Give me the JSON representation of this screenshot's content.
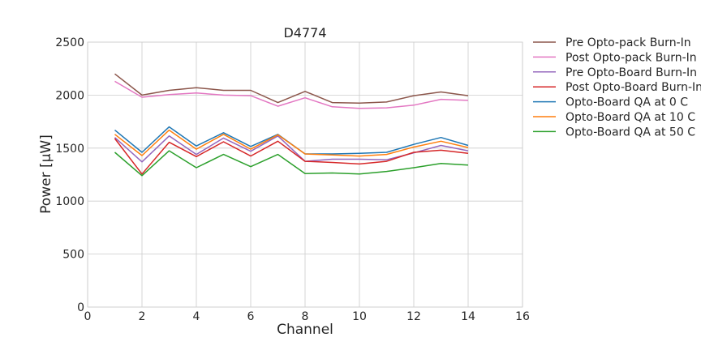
{
  "chart_data": {
    "type": "line",
    "title": "D4774",
    "xlabel": "Channel",
    "ylabel": "Power [μW]",
    "xlim": [
      0,
      16
    ],
    "ylim": [
      0,
      2500
    ],
    "xticks": [
      0,
      2,
      4,
      6,
      8,
      10,
      12,
      14,
      16
    ],
    "yticks": [
      0,
      500,
      1000,
      1500,
      2000,
      2500
    ],
    "grid": true,
    "legend": "right-outside-top",
    "x": [
      1,
      2,
      3,
      4,
      5,
      6,
      7,
      8,
      9,
      10,
      11,
      12,
      13,
      14
    ],
    "series": [
      {
        "name": "Pre Opto-pack Burn-In",
        "color": "#8c564b",
        "values": [
          2200,
          2000,
          2045,
          2070,
          2045,
          2045,
          1930,
          2035,
          1930,
          1925,
          1935,
          1995,
          2030,
          1995
        ]
      },
      {
        "name": "Post Opto-pack Burn-In",
        "color": "#e377c2",
        "values": [
          2130,
          1980,
          2005,
          2020,
          2000,
          1995,
          1895,
          1975,
          1890,
          1875,
          1880,
          1905,
          1960,
          1950
        ]
      },
      {
        "name": "Pre Opto-Board Burn-In",
        "color": "#9467bd",
        "values": [
          1600,
          1370,
          1615,
          1440,
          1595,
          1470,
          1615,
          1375,
          1395,
          1395,
          1390,
          1455,
          1525,
          1475
        ]
      },
      {
        "name": "Post Opto-Board Burn-In",
        "color": "#d62728",
        "values": [
          1590,
          1255,
          1555,
          1420,
          1560,
          1425,
          1565,
          1375,
          1365,
          1350,
          1375,
          1460,
          1480,
          1450
        ]
      },
      {
        "name": "Opto-Board QA at 0 C",
        "color": "#1f77b4",
        "values": [
          1670,
          1460,
          1700,
          1520,
          1645,
          1515,
          1630,
          1445,
          1445,
          1450,
          1460,
          1535,
          1600,
          1525
        ]
      },
      {
        "name": "Opto-Board QA at 10 C",
        "color": "#ff7f0e",
        "values": [
          1630,
          1430,
          1670,
          1490,
          1630,
          1490,
          1625,
          1445,
          1435,
          1425,
          1440,
          1510,
          1565,
          1505
        ]
      },
      {
        "name": "Opto-Board QA at 50 C",
        "color": "#2ca02c",
        "values": [
          1460,
          1240,
          1475,
          1315,
          1440,
          1325,
          1440,
          1260,
          1265,
          1255,
          1280,
          1315,
          1355,
          1340
        ]
      }
    ]
  }
}
